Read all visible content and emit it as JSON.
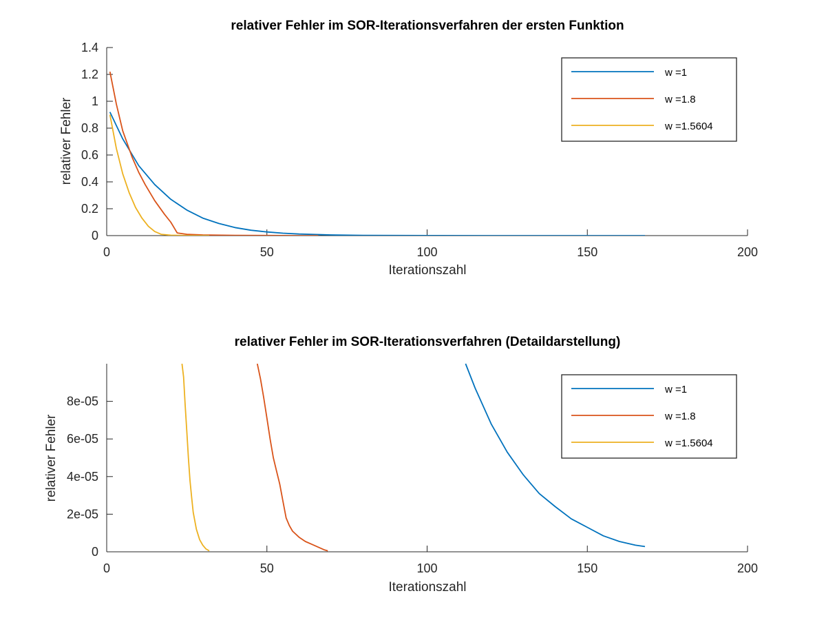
{
  "chart_data": [
    {
      "type": "line",
      "title": "relativer Fehler im SOR-Iterationsverfahren der ersten Funktion",
      "xlabel": "Iterationszahl",
      "ylabel": "relativer Fehler",
      "xlim": [
        0,
        200
      ],
      "ylim": [
        0,
        1.4
      ],
      "xticks": [
        0,
        50,
        100,
        150,
        200
      ],
      "xtick_labels": [
        "0",
        "50",
        "100",
        "150",
        "200"
      ],
      "yticks": [
        0,
        0.2,
        0.4,
        0.6,
        0.8,
        1,
        1.2,
        1.4
      ],
      "ytick_labels": [
        "0",
        "0.2",
        "0.4",
        "0.6",
        "0.8",
        "1",
        "1.2",
        "1.4"
      ],
      "grid": false,
      "legend_position": "top-right",
      "series": [
        {
          "name": "w =1",
          "color": "#0072bd",
          "x": [
            1,
            5,
            10,
            15,
            20,
            25,
            30,
            35,
            40,
            45,
            50,
            55,
            60,
            70,
            80,
            100,
            120,
            140,
            168
          ],
          "y": [
            0.92,
            0.72,
            0.52,
            0.38,
            0.27,
            0.19,
            0.13,
            0.09,
            0.06,
            0.04,
            0.027,
            0.018,
            0.012,
            0.005,
            0.002,
            0.0005,
            0.0002,
            5e-05,
            1e-05
          ]
        },
        {
          "name": "w =1.8",
          "color": "#d95319",
          "x": [
            1,
            3,
            5,
            8,
            10,
            12,
            15,
            18,
            20,
            21,
            22,
            25,
            30,
            40,
            50,
            60,
            66
          ],
          "y": [
            1.22,
            0.98,
            0.78,
            0.58,
            0.47,
            0.38,
            0.26,
            0.16,
            0.1,
            0.06,
            0.02,
            0.01,
            0.005,
            0.002,
            0.0008,
            0.0002,
            5e-05
          ]
        },
        {
          "name": "w =1.5604",
          "color": "#edb120",
          "x": [
            1,
            3,
            5,
            7,
            9,
            11,
            13,
            15,
            17,
            20,
            25,
            32
          ],
          "y": [
            0.9,
            0.65,
            0.46,
            0.32,
            0.21,
            0.13,
            0.07,
            0.03,
            0.01,
            0.003,
            0.0005,
            1e-05
          ]
        }
      ]
    },
    {
      "type": "line",
      "title": "relativer Fehler im SOR-Iterationsverfahren (Detaildarstellung)",
      "xlabel": "Iterationszahl",
      "ylabel": "relativer Fehler",
      "xlim": [
        0,
        200
      ],
      "ylim": [
        0,
        0.0001
      ],
      "xticks": [
        0,
        50,
        100,
        150,
        200
      ],
      "xtick_labels": [
        "0",
        "50",
        "100",
        "150",
        "200"
      ],
      "yticks": [
        0,
        2e-05,
        4e-05,
        6e-05,
        8e-05
      ],
      "ytick_labels": [
        "0",
        "2e-05",
        "4e-05",
        "6e-05",
        "8e-05"
      ],
      "grid": false,
      "legend_position": "top-right",
      "series": [
        {
          "name": "w =1",
          "color": "#0072bd",
          "x": [
            112,
            115,
            120,
            125,
            130,
            135,
            140,
            145,
            150,
            155,
            160,
            165,
            168
          ],
          "y": [
            0.0001,
            8.7e-05,
            6.8e-05,
            5.3e-05,
            4.1e-05,
            3.1e-05,
            2.4e-05,
            1.75e-05,
            1.3e-05,
            8.5e-06,
            5.5e-06,
            3.5e-06,
            2.8e-06
          ]
        },
        {
          "name": "w =1.8",
          "color": "#d95319",
          "x": [
            47,
            48,
            49,
            50,
            51,
            52,
            53,
            54,
            55,
            56,
            57,
            58,
            60,
            62,
            64,
            66,
            68,
            69
          ],
          "y": [
            0.0001,
            9.2e-05,
            8.2e-05,
            7.1e-05,
            6e-05,
            5e-05,
            4.3e-05,
            3.6e-05,
            2.7e-05,
            1.8e-05,
            1.4e-05,
            1.1e-05,
            7.8e-06,
            5.5e-06,
            4e-06,
            2.5e-06,
            1e-06,
            5e-07
          ]
        },
        {
          "name": "w =1.5604",
          "color": "#edb120",
          "x": [
            23.5,
            24,
            24.5,
            25,
            25.5,
            26,
            26.5,
            27,
            28,
            29,
            30,
            31,
            32
          ],
          "y": [
            0.0001,
            9.3e-05,
            7.8e-05,
            6.4e-05,
            5e-05,
            3.8e-05,
            2.9e-05,
            2.1e-05,
            1.2e-05,
            6.5e-06,
            3.5e-06,
            1.5e-06,
            5e-07
          ]
        }
      ]
    }
  ]
}
